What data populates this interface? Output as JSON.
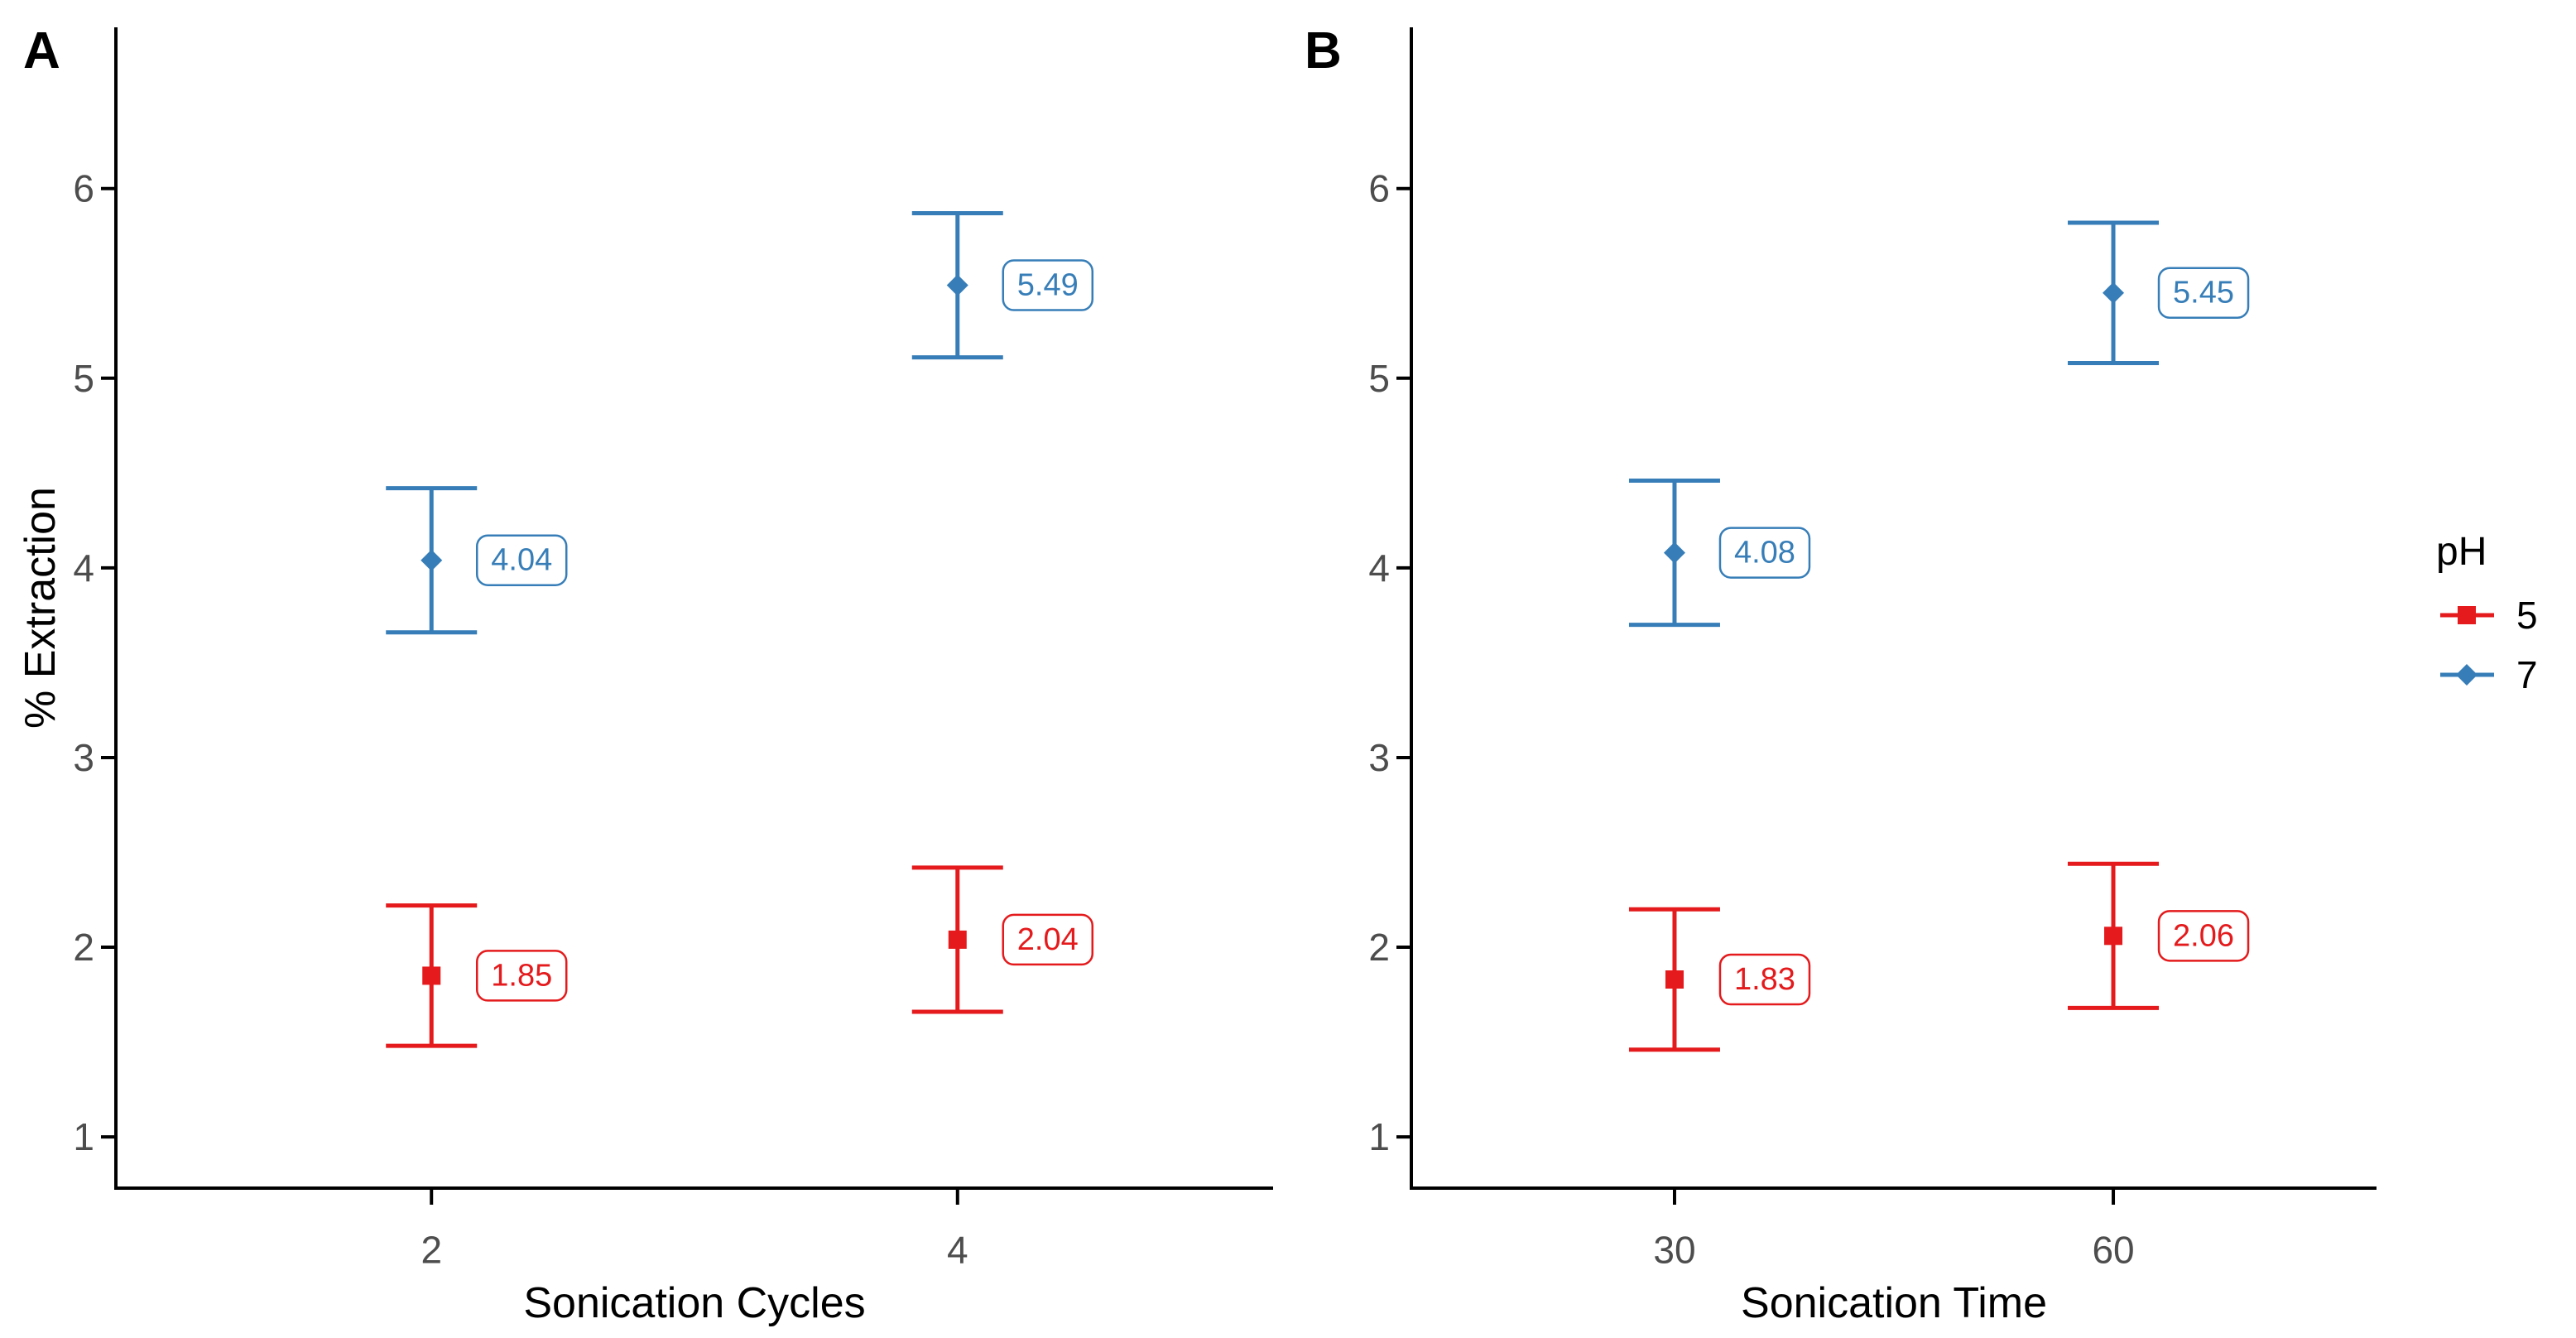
{
  "figure": {
    "background": "#ffffff",
    "axis_color": "#000000",
    "tick_label_color": "#4d4d4d"
  },
  "legend": {
    "title": "pH",
    "position": "right",
    "items": [
      {
        "label": "5",
        "color": "#e41a1c",
        "shape": "square"
      },
      {
        "label": "7",
        "color": "#377eb8",
        "shape": "diamond"
      }
    ]
  },
  "chart_data": [
    {
      "type": "pointrange",
      "panel_label": "A",
      "xlabel": "Sonication Cycles",
      "ylabel": "% Extraction",
      "categories": [
        "2",
        "4"
      ],
      "yticks": [
        "1",
        "2",
        "3",
        "4",
        "5",
        "6"
      ],
      "ylim": [
        0.73,
        6.85
      ],
      "grid": "off",
      "series": [
        {
          "name": "5",
          "color": "#e41a1c",
          "shape": "square",
          "points": [
            {
              "x": "2",
              "mean": 1.85,
              "lower": 1.48,
              "upper": 2.22,
              "label": "1.85"
            },
            {
              "x": "4",
              "mean": 2.04,
              "lower": 1.66,
              "upper": 2.42,
              "label": "2.04"
            }
          ]
        },
        {
          "name": "7",
          "color": "#377eb8",
          "shape": "diamond",
          "points": [
            {
              "x": "2",
              "mean": 4.04,
              "lower": 3.66,
              "upper": 4.42,
              "label": "4.04"
            },
            {
              "x": "4",
              "mean": 5.49,
              "lower": 5.11,
              "upper": 5.87,
              "label": "5.49"
            }
          ]
        }
      ]
    },
    {
      "type": "pointrange",
      "panel_label": "B",
      "xlabel": "Sonication Time",
      "ylabel": "",
      "categories": [
        "30",
        "60"
      ],
      "yticks": [
        "1",
        "2",
        "3",
        "4",
        "5",
        "6"
      ],
      "ylim": [
        0.73,
        6.85
      ],
      "grid": "off",
      "series": [
        {
          "name": "5",
          "color": "#e41a1c",
          "shape": "square",
          "points": [
            {
              "x": "30",
              "mean": 1.83,
              "lower": 1.46,
              "upper": 2.2,
              "label": "1.83"
            },
            {
              "x": "60",
              "mean": 2.06,
              "lower": 1.68,
              "upper": 2.44,
              "label": "2.06"
            }
          ]
        },
        {
          "name": "7",
          "color": "#377eb8",
          "shape": "diamond",
          "points": [
            {
              "x": "30",
              "mean": 4.08,
              "lower": 3.7,
              "upper": 4.46,
              "label": "4.08"
            },
            {
              "x": "60",
              "mean": 5.45,
              "lower": 5.08,
              "upper": 5.82,
              "label": "5.45"
            }
          ]
        }
      ]
    }
  ]
}
